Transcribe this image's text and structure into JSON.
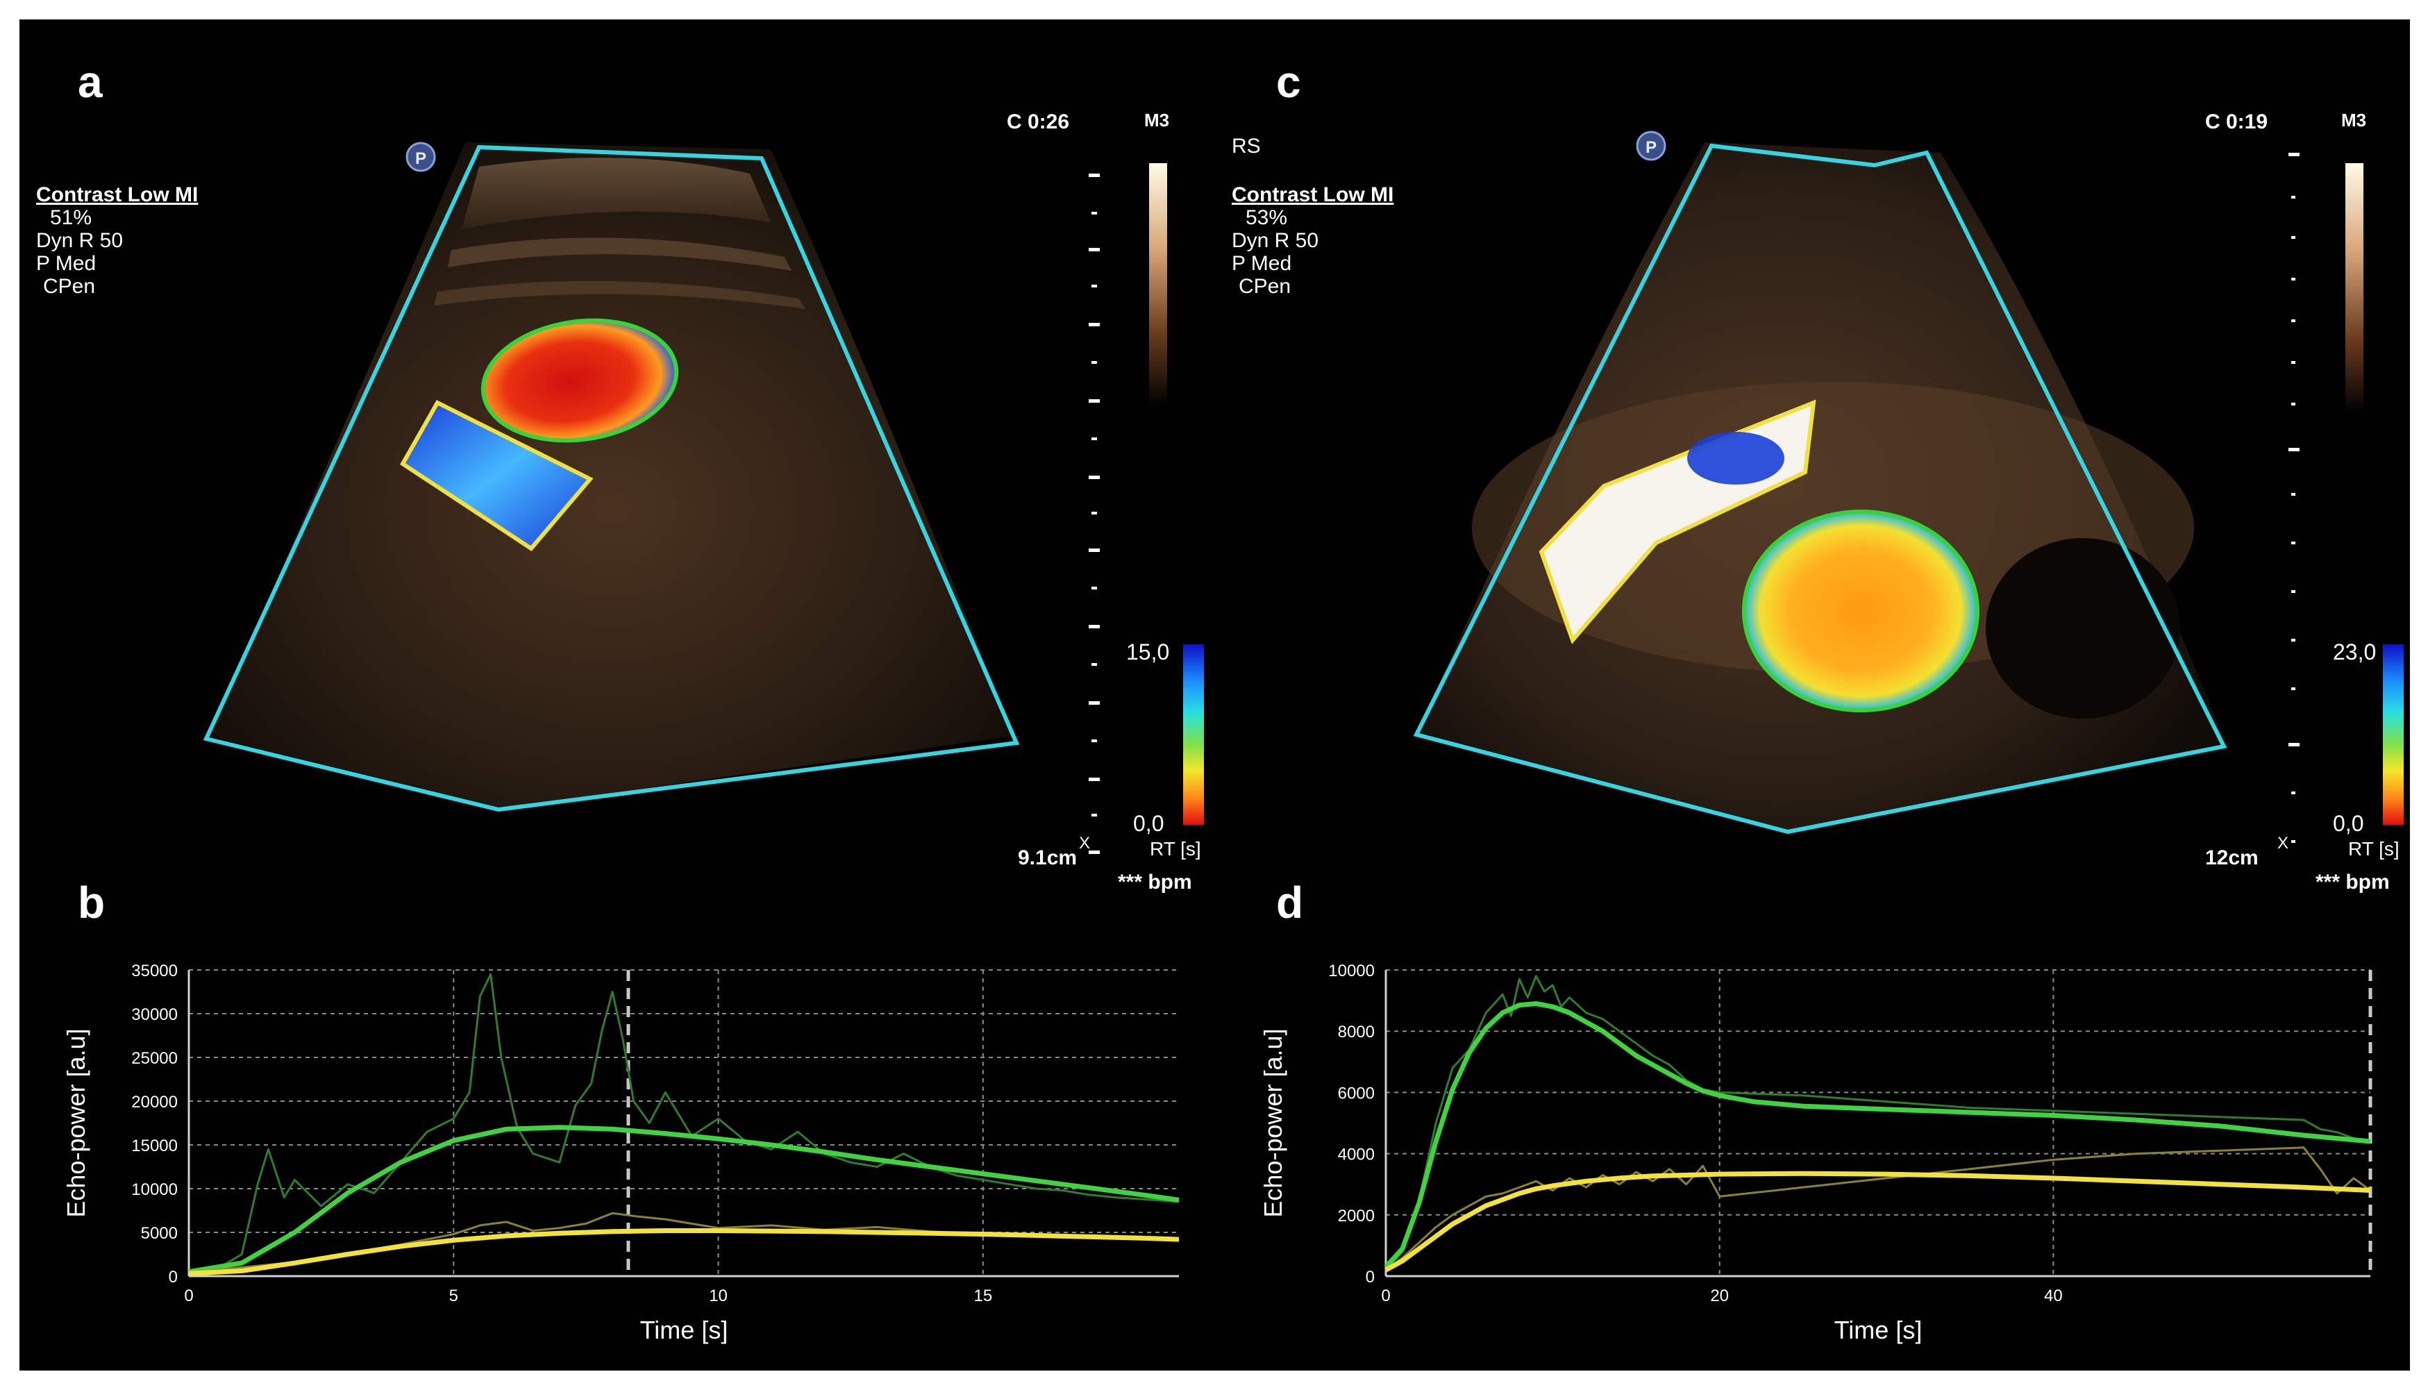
{
  "panels": {
    "a": {
      "label": "a",
      "clock": "C 0:26",
      "map_label": "M3",
      "probe_badge": "P",
      "preset_title": "Contrast Low MI",
      "settings": [
        "51%",
        "Dyn R 50",
        "P Med",
        "CPen"
      ],
      "scale_max": "15,0",
      "scale_min": "0,0",
      "scale_unit": "RT [s]",
      "depth": "9.1cm",
      "bpm": "*** bpm",
      "marker": "X"
    },
    "c": {
      "label": "c",
      "clock": "C 0:19",
      "map_label": "M3",
      "probe_badge": "P",
      "mode": "RS",
      "preset_title": "Contrast Low MI",
      "settings": [
        "53%",
        "Dyn R 50",
        "P Med",
        "CPen"
      ],
      "scale_max": "23,0",
      "scale_min": "0,0",
      "scale_unit": "RT [s]",
      "depth": "12cm",
      "bpm": "*** bpm",
      "marker": "X"
    }
  },
  "colors": {
    "green_curve": "#3fd43f",
    "green_raw": "#2e7d2e",
    "yellow_curve": "#f2e23a",
    "yellow_raw": "#8a8231",
    "roi_cyan": "#34d4e0",
    "roi_green": "#37d337",
    "roi_yellow": "#f0e040"
  },
  "chart_data": [
    {
      "panel": "b",
      "type": "line",
      "xlabel": "Time [s]",
      "ylabel": "Echo-power [a.u]",
      "xlim": [
        0,
        18.7
      ],
      "ylim": [
        0,
        35000
      ],
      "xticks": [
        0,
        5,
        10,
        15
      ],
      "yticks": [
        0,
        5000,
        10000,
        15000,
        20000,
        25000,
        30000,
        35000
      ],
      "marker_x": 8.3,
      "grid": true,
      "series": [
        {
          "color": "green_raw",
          "style": "raw",
          "x": [
            0,
            0.5,
            1,
            1.3,
            1.5,
            1.8,
            2,
            2.5,
            3,
            3.5,
            4,
            4.5,
            5,
            5.3,
            5.5,
            5.7,
            5.9,
            6.2,
            6.5,
            7,
            7.3,
            7.6,
            7.8,
            8,
            8.2,
            8.4,
            8.7,
            9,
            9.5,
            10,
            10.5,
            11,
            11.5,
            12,
            12.5,
            13,
            13.5,
            14,
            14.5,
            15,
            15.5,
            16,
            16.5,
            17,
            17.5,
            18,
            18.7
          ],
          "y": [
            500,
            700,
            2500,
            10500,
            14500,
            9000,
            11000,
            8000,
            10500,
            9500,
            13000,
            16500,
            18000,
            21000,
            32000,
            34500,
            25000,
            17000,
            14000,
            13000,
            19500,
            22000,
            28000,
            32500,
            27000,
            20000,
            17500,
            21000,
            16000,
            18000,
            15500,
            14500,
            16500,
            14000,
            13000,
            12500,
            14000,
            12500,
            11500,
            11000,
            10500,
            10000,
            9800,
            9300,
            9000,
            8800,
            8500
          ]
        },
        {
          "color": "green_curve",
          "style": "fit",
          "x": [
            0,
            1,
            2,
            3,
            4,
            5,
            6,
            7,
            8,
            9,
            10,
            11,
            12,
            13,
            14,
            15,
            16,
            17,
            18,
            18.7
          ],
          "y": [
            500,
            1500,
            5000,
            9500,
            13000,
            15500,
            16800,
            17000,
            16800,
            16300,
            15700,
            15000,
            14200,
            13300,
            12500,
            11700,
            10900,
            10100,
            9300,
            8700
          ]
        },
        {
          "color": "yellow_raw",
          "style": "raw",
          "x": [
            0,
            2,
            4,
            5,
            5.5,
            6,
            6.5,
            7,
            7.5,
            8,
            8.5,
            9,
            10,
            11,
            12,
            13,
            14,
            15,
            16,
            17,
            18,
            18.7
          ],
          "y": [
            400,
            1600,
            3600,
            4800,
            5800,
            6200,
            5200,
            5500,
            6000,
            7200,
            6800,
            6500,
            5500,
            5800,
            5300,
            5600,
            5100,
            4800,
            4600,
            4500,
            4300,
            4200
          ]
        },
        {
          "color": "yellow_curve",
          "style": "fit",
          "x": [
            0,
            1,
            2,
            3,
            4,
            5,
            6,
            7,
            8,
            9,
            10,
            11,
            12,
            13,
            14,
            15,
            16,
            17,
            18,
            18.7
          ],
          "y": [
            300,
            600,
            1500,
            2500,
            3400,
            4100,
            4600,
            4900,
            5100,
            5200,
            5200,
            5150,
            5100,
            5000,
            4900,
            4800,
            4650,
            4500,
            4350,
            4200
          ]
        }
      ]
    },
    {
      "panel": "d",
      "type": "line",
      "xlabel": "Time [s]",
      "ylabel": "Echo-power [a.u]",
      "xlim": [
        0,
        59
      ],
      "ylim": [
        0,
        10000
      ],
      "xticks": [
        0,
        20,
        40
      ],
      "yticks": [
        0,
        2000,
        4000,
        6000,
        8000,
        10000
      ],
      "marker_x": 59,
      "grid": true,
      "series": [
        {
          "color": "green_raw",
          "style": "raw",
          "x": [
            0,
            1,
            2,
            3,
            4,
            5,
            6,
            7,
            7.5,
            8,
            8.5,
            9,
            9.5,
            10,
            10.5,
            11,
            12,
            13,
            14,
            15,
            16,
            17,
            18,
            19,
            20,
            25,
            30,
            35,
            40,
            45,
            50,
            55,
            56,
            57,
            58,
            59
          ],
          "y": [
            200,
            800,
            2500,
            5000,
            6800,
            7400,
            8600,
            9200,
            8500,
            9700,
            9100,
            9800,
            9300,
            9500,
            8800,
            9100,
            8600,
            8400,
            8000,
            7600,
            7200,
            6900,
            6400,
            6100,
            6000,
            5900,
            5700,
            5500,
            5400,
            5300,
            5200,
            5100,
            4800,
            4700,
            4500,
            4400
          ]
        },
        {
          "color": "green_curve",
          "style": "fit",
          "x": [
            0,
            1,
            2,
            3,
            4,
            5,
            6,
            7,
            8,
            9,
            10,
            11,
            12,
            13,
            14,
            15,
            16,
            17,
            18,
            19,
            20,
            22,
            25,
            30,
            35,
            40,
            45,
            50,
            55,
            59
          ],
          "y": [
            300,
            900,
            2400,
            4400,
            6100,
            7300,
            8100,
            8600,
            8850,
            8900,
            8800,
            8600,
            8300,
            8000,
            7600,
            7200,
            6900,
            6600,
            6300,
            6050,
            5900,
            5700,
            5550,
            5450,
            5350,
            5250,
            5100,
            4900,
            4600,
            4400
          ]
        },
        {
          "color": "yellow_raw",
          "style": "raw",
          "x": [
            0,
            1,
            2,
            3,
            4,
            5,
            6,
            7,
            8,
            9,
            10,
            11,
            12,
            13,
            14,
            15,
            16,
            17,
            18,
            19,
            20,
            25,
            30,
            35,
            40,
            45,
            50,
            55,
            56,
            57,
            58,
            59
          ],
          "y": [
            200,
            600,
            1100,
            1600,
            2000,
            2300,
            2600,
            2700,
            2900,
            3100,
            2800,
            3200,
            2900,
            3300,
            3000,
            3400,
            3100,
            3500,
            3000,
            3600,
            2600,
            2900,
            3200,
            3500,
            3800,
            4000,
            4100,
            4200,
            3500,
            2700,
            3200,
            2800
          ]
        },
        {
          "color": "yellow_curve",
          "style": "fit",
          "x": [
            0,
            1,
            2,
            3,
            4,
            5,
            6,
            7,
            8,
            9,
            10,
            12,
            14,
            16,
            18,
            20,
            22,
            25,
            30,
            35,
            40,
            45,
            50,
            55,
            59
          ],
          "y": [
            200,
            500,
            900,
            1300,
            1700,
            2000,
            2300,
            2500,
            2700,
            2850,
            2950,
            3100,
            3200,
            3270,
            3300,
            3330,
            3340,
            3350,
            3330,
            3280,
            3200,
            3100,
            3000,
            2900,
            2800
          ]
        }
      ]
    }
  ]
}
